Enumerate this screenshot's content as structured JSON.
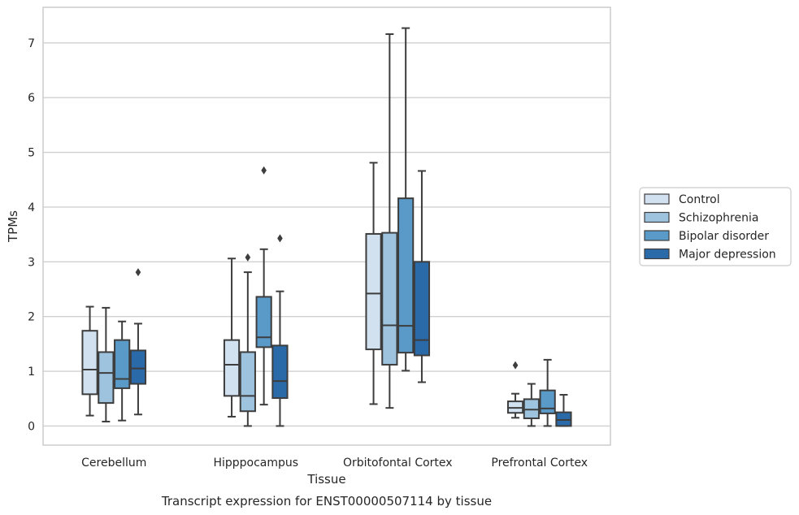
{
  "chart_data": {
    "type": "box",
    "xlabel": "Tissue",
    "ylabel": "TPMs",
    "caption": "Transcript expression for ENST00000507114 by tissue",
    "ylim": [
      -0.35,
      7.65
    ],
    "yticks": [
      0,
      1,
      2,
      3,
      4,
      5,
      6,
      7
    ],
    "grid": "horizontal",
    "legend_position": "right",
    "categories": [
      "Cerebellum",
      "Hipppocampus",
      "Orbitofontal Cortex",
      "Prefrontal Cortex"
    ],
    "series": [
      {
        "name": "Control",
        "color": "#d1e1f0",
        "boxes": [
          {
            "whisker_low": 0.19,
            "q1": 0.58,
            "median": 1.03,
            "q3": 1.74,
            "whisker_high": 2.18,
            "outliers": []
          },
          {
            "whisker_low": 0.17,
            "q1": 0.55,
            "median": 1.12,
            "q3": 1.57,
            "whisker_high": 3.06,
            "outliers": []
          },
          {
            "whisker_low": 0.4,
            "q1": 1.4,
            "median": 2.42,
            "q3": 3.51,
            "whisker_high": 4.81,
            "outliers": []
          },
          {
            "whisker_low": 0.15,
            "q1": 0.24,
            "median": 0.33,
            "q3": 0.45,
            "whisker_high": 0.59,
            "outliers": [
              1.11
            ]
          }
        ]
      },
      {
        "name": "Schizophrenia",
        "color": "#9dc3de",
        "boxes": [
          {
            "whisker_low": 0.08,
            "q1": 0.42,
            "median": 0.97,
            "q3": 1.35,
            "whisker_high": 2.16,
            "outliers": []
          },
          {
            "whisker_low": 0.0,
            "q1": 0.27,
            "median": 0.55,
            "q3": 1.35,
            "whisker_high": 2.81,
            "outliers": [
              3.08
            ]
          },
          {
            "whisker_low": 0.33,
            "q1": 1.12,
            "median": 1.84,
            "q3": 3.53,
            "whisker_high": 7.16,
            "outliers": []
          },
          {
            "whisker_low": 0.0,
            "q1": 0.14,
            "median": 0.3,
            "q3": 0.49,
            "whisker_high": 0.77,
            "outliers": []
          }
        ]
      },
      {
        "name": "Bipolar disorder",
        "color": "#5a9ac8",
        "boxes": [
          {
            "whisker_low": 0.1,
            "q1": 0.69,
            "median": 0.86,
            "q3": 1.57,
            "whisker_high": 1.91,
            "outliers": []
          },
          {
            "whisker_low": 0.39,
            "q1": 1.44,
            "median": 1.62,
            "q3": 2.36,
            "whisker_high": 3.23,
            "outliers": [
              4.67
            ]
          },
          {
            "whisker_low": 1.01,
            "q1": 1.34,
            "median": 1.83,
            "q3": 4.16,
            "whisker_high": 7.27,
            "outliers": []
          },
          {
            "whisker_low": 0.0,
            "q1": 0.23,
            "median": 0.32,
            "q3": 0.65,
            "whisker_high": 1.21,
            "outliers": []
          }
        ]
      },
      {
        "name": "Major depression",
        "color": "#2b6aa8",
        "boxes": [
          {
            "whisker_low": 0.21,
            "q1": 0.77,
            "median": 1.05,
            "q3": 1.38,
            "whisker_high": 1.87,
            "outliers": [
              2.81
            ]
          },
          {
            "whisker_low": 0.0,
            "q1": 0.51,
            "median": 0.82,
            "q3": 1.47,
            "whisker_high": 2.46,
            "outliers": [
              3.43
            ]
          },
          {
            "whisker_low": 0.8,
            "q1": 1.29,
            "median": 1.57,
            "q3": 3.0,
            "whisker_high": 4.66,
            "outliers": []
          },
          {
            "whisker_low": 0.0,
            "q1": 0.0,
            "median": 0.11,
            "q3": 0.25,
            "whisker_high": 0.57,
            "outliers": []
          }
        ]
      }
    ]
  }
}
